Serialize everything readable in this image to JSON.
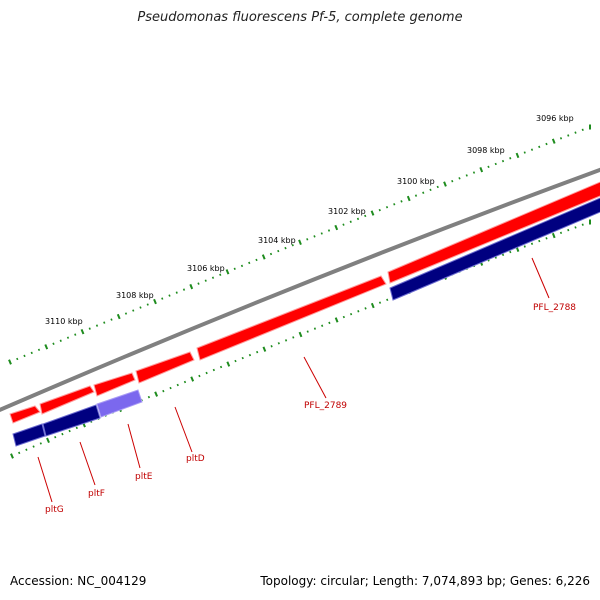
{
  "title": "Pseudomonas fluorescens Pf-5, complete genome",
  "footer": {
    "accession": "Accession: NC_004129",
    "summary": "Topology: circular; Length: 7,074,893 bp; Genes: 6,226"
  },
  "colors": {
    "backbone": "#808080",
    "forward_gene": "#ff0000",
    "reverse_gene": "#000080",
    "highlight_gene": "#7b68ee",
    "tick": "#1e8c1e",
    "label": "#cc0000"
  },
  "ticks": [
    {
      "label": "3096 kbp"
    },
    {
      "label": "3098 kbp"
    },
    {
      "label": "3100 kbp"
    },
    {
      "label": "3102 kbp"
    },
    {
      "label": "3104 kbp"
    },
    {
      "label": "3106 kbp"
    },
    {
      "label": "3108 kbp"
    },
    {
      "label": "3110 kbp"
    }
  ],
  "genes": [
    {
      "name": "PFL_2788"
    },
    {
      "name": "PFL_2789"
    },
    {
      "name": "pltD"
    },
    {
      "name": "pltE"
    },
    {
      "name": "pltF"
    },
    {
      "name": "pltG"
    }
  ]
}
